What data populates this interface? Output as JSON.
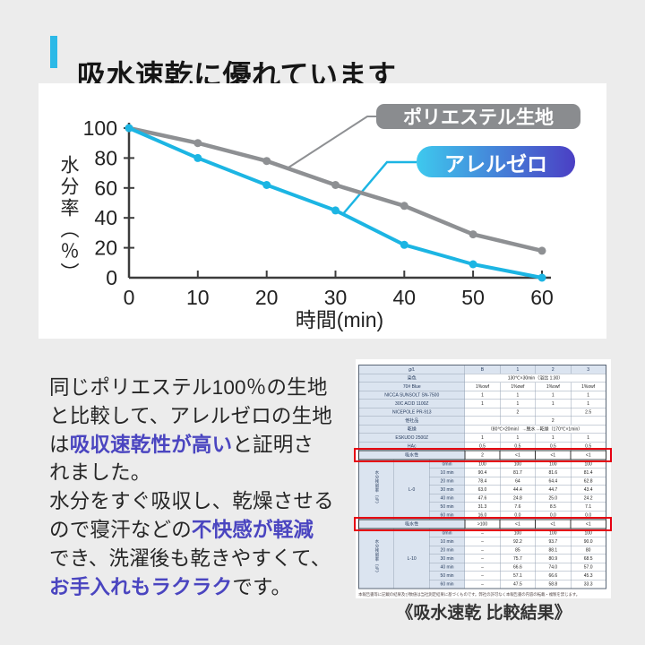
{
  "header": {
    "title": "吸水速乾に優れています"
  },
  "colors": {
    "page_bg": "#ececec",
    "accent": "#2cb9e7",
    "em_text": "#4a45c0",
    "red_box": "#e60012",
    "pill_gray": "#8a8c8f",
    "pill_gradient_start": "#3ec9ee",
    "pill_gradient_end": "#4b3fc4"
  },
  "chart_data": {
    "type": "line",
    "x": [
      0,
      10,
      20,
      30,
      40,
      50,
      60
    ],
    "series": [
      {
        "name": "ポリエステル生地",
        "values": [
          100,
          90,
          78,
          62,
          48,
          29,
          18
        ],
        "color": "#8e9093"
      },
      {
        "name": "アレルゼロ",
        "values": [
          100,
          80,
          62,
          45,
          22,
          9,
          0
        ],
        "color": "#1cb5e3"
      }
    ],
    "xlabel": "時間(min)",
    "ylabel": "水分率（％）",
    "xticks": [
      0,
      10,
      20,
      30,
      40,
      50,
      60
    ],
    "yticks": [
      0,
      20,
      40,
      60,
      80,
      100
    ],
    "ylim": [
      0,
      100
    ],
    "xlim": [
      0,
      60
    ],
    "grid": false,
    "legend_position": "top-right"
  },
  "description": {
    "lines": [
      [
        {
          "t": "同じポリエステル100％の生地"
        }
      ],
      [
        {
          "t": "と比較して、アレルゼロの生地"
        }
      ],
      [
        {
          "t": "は"
        },
        {
          "t": "吸収速乾性が高い",
          "em": true
        },
        {
          "t": "と証明さ"
        }
      ],
      [
        {
          "t": "れました。"
        }
      ],
      [
        {
          "t": "水分をすぐ吸収し、乾燥させる"
        }
      ],
      [
        {
          "t": "ので寝汗などの"
        },
        {
          "t": "不快感が軽減",
          "em": true
        }
      ],
      [
        {
          "t": "でき、洗濯後も乾きやすくて、"
        }
      ],
      [
        {
          "t": "お手入れもラクラク",
          "em": true
        },
        {
          "t": "です。"
        }
      ]
    ]
  },
  "table": {
    "header": [
      "g/L",
      "B",
      "1",
      "2",
      "3"
    ],
    "top_rows": [
      {
        "label": "染色",
        "span": "130℃×30min（浴比 1:30）"
      },
      {
        "label": "70# Blue",
        "vals": [
          "1%owf",
          "1%owf",
          "1%owf",
          "1%owf"
        ]
      },
      {
        "label": "NICCA SUNSOLT SN-7500",
        "vals": [
          "1",
          "1",
          "1",
          "1"
        ]
      },
      {
        "label": "30C ACID 1100Z",
        "vals": [
          "1",
          "1",
          "1",
          "1"
        ]
      },
      {
        "label": "NICEPOLE PR-913",
        "vals": [
          "",
          "2",
          "",
          "2.5"
        ]
      },
      {
        "label": "他社品",
        "vals": [
          "",
          "",
          "2",
          ""
        ]
      },
      {
        "label": "乾燥",
        "span": "（80℃×20min）→脱水→乾燥（170℃×1min）"
      },
      {
        "label": "ESKUDO 2500Z",
        "vals": [
          "1",
          "1",
          "1",
          "1"
        ]
      },
      {
        "label": "HAc",
        "vals": [
          "0.5",
          "0.5",
          "0.5",
          "0.5"
        ]
      },
      {
        "label": "吸水性",
        "vals": [
          "2",
          "<1",
          "<1",
          "<1"
        ],
        "red": true
      }
    ],
    "sections": [
      {
        "side_label": "水分残留率（％）",
        "group": "L-0",
        "rows": [
          [
            "0min",
            "100",
            "100",
            "100",
            "100"
          ],
          [
            "10 min",
            "90.4",
            "81.7",
            "81.6",
            "81.4"
          ],
          [
            "20 min",
            "78.4",
            "64",
            "64.4",
            "62.8"
          ],
          [
            "30 min",
            "63.0",
            "44.4",
            "44.7",
            "43.4"
          ],
          [
            "40 min",
            "47.6",
            "24.8",
            "25.0",
            "24.2"
          ],
          [
            "50 min",
            "31.3",
            "7.6",
            "8.5",
            "7.1"
          ],
          [
            "60 min",
            "16.0",
            "0.0",
            "0.0",
            "0.0"
          ]
        ]
      },
      {
        "mid": {
          "label": "吸水性",
          "vals": [
            ">100",
            "<1",
            "<1",
            "<1"
          ],
          "red": true
        }
      },
      {
        "side_label": "水分残留率（％）",
        "group": "L-10",
        "rows": [
          [
            "0min",
            "–",
            "100",
            "100",
            "100"
          ],
          [
            "10 min",
            "–",
            "92.2",
            "93.7",
            "90.0"
          ],
          [
            "20 min",
            "–",
            "85",
            "88.1",
            "80"
          ],
          [
            "30 min",
            "–",
            "75.7",
            "80.9",
            "68.5"
          ],
          [
            "40 min",
            "–",
            "66.6",
            "74.0",
            "57.0"
          ],
          [
            "50 min",
            "–",
            "57.1",
            "66.6",
            "45.3"
          ],
          [
            "60 min",
            "–",
            "47.5",
            "58.8",
            "33.3"
          ]
        ]
      }
    ],
    "footnote": "本報告書等に記載の結果及び数値は当社測定結果に基づくものです。弊社の許可なく本報告書の内容の転載・複製を禁じます。"
  },
  "caption": "《吸水速乾 比較結果》"
}
